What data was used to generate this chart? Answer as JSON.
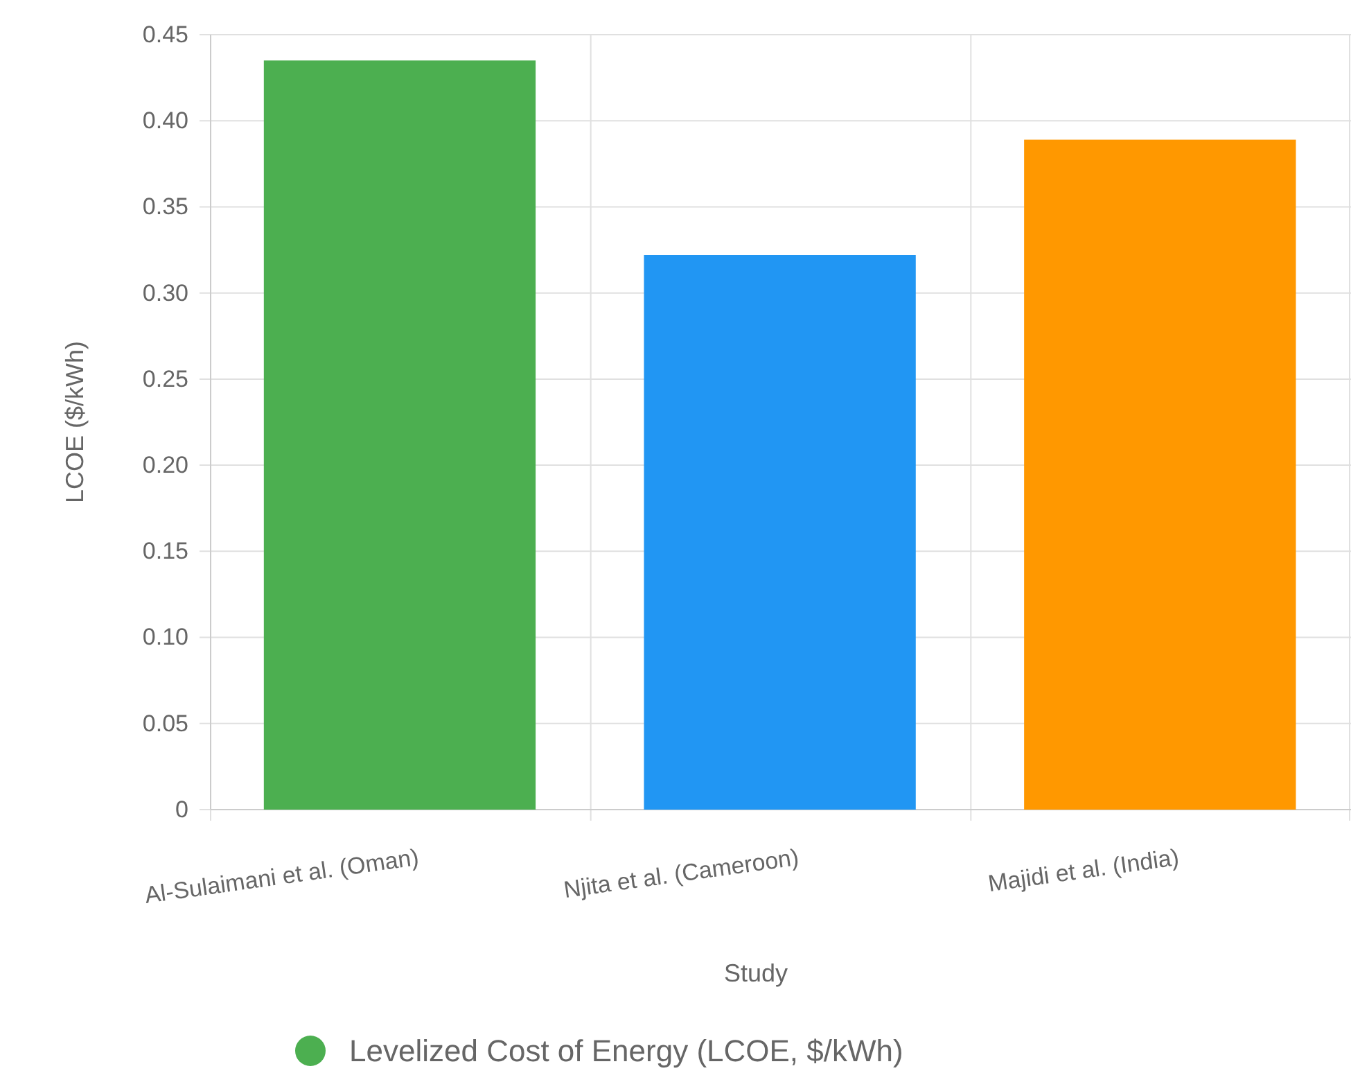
{
  "chart_data": {
    "type": "bar",
    "xlabel": "Study",
    "ylabel": "LCOE ($/kWh)",
    "categories": [
      "Al-Sulaimani et al. (Oman)",
      "Njita et al. (Cameroon)",
      "Majidi et al. (India)"
    ],
    "series": [
      {
        "name": "Levelized Cost of Energy (LCOE, $/kWh)",
        "colors": [
          "#4caf50",
          "#2196f3",
          "#ff9800"
        ],
        "values": [
          0.435,
          0.322,
          0.389
        ]
      }
    ],
    "ylim": [
      0,
      0.45
    ],
    "yticks": [
      {
        "value": 0,
        "label": "0"
      },
      {
        "value": 0.05,
        "label": "0.05"
      },
      {
        "value": 0.1,
        "label": "0.10"
      },
      {
        "value": 0.15,
        "label": "0.15"
      },
      {
        "value": 0.2,
        "label": "0.20"
      },
      {
        "value": 0.25,
        "label": "0.25"
      },
      {
        "value": 0.3,
        "label": "0.30"
      },
      {
        "value": 0.35,
        "label": "0.35"
      },
      {
        "value": 0.4,
        "label": "0.40"
      },
      {
        "value": 0.45,
        "label": "0.45"
      }
    ],
    "grid": true,
    "legend": "bottom"
  }
}
